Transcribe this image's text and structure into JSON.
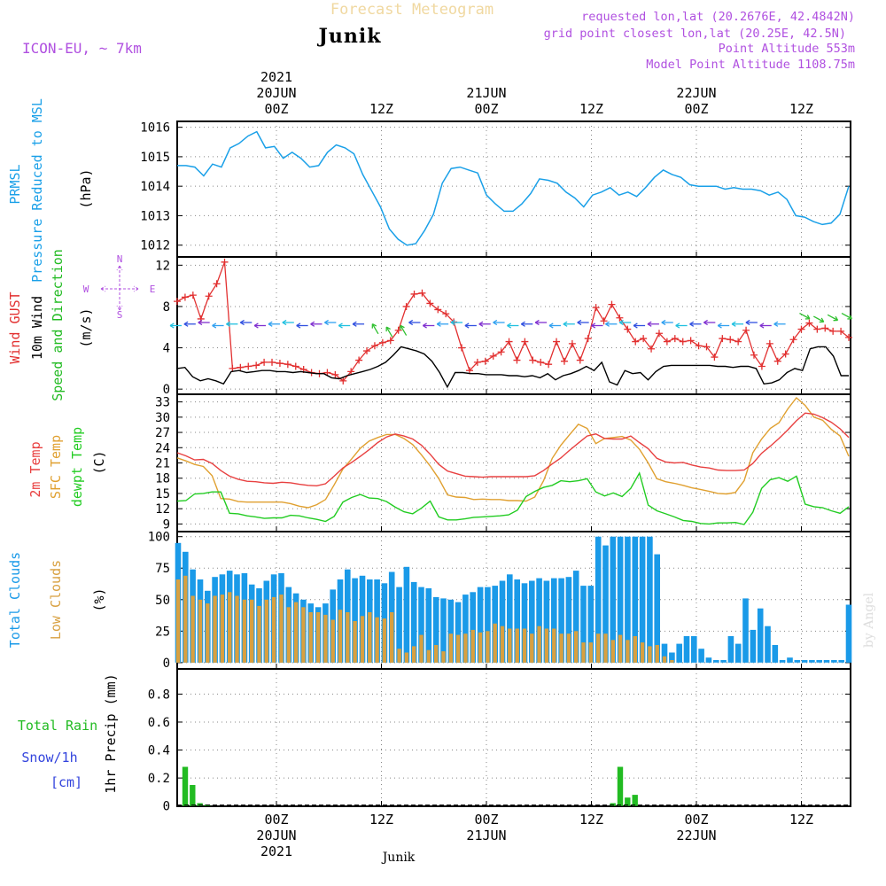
{
  "header": {
    "title": "Forecast Meteogram",
    "location": "Junik",
    "model": "ICON-EU, ~ 7km",
    "requested": "requested lon,lat (20.2676E, 42.4842N)",
    "gridpoint": "grid point closest lon,lat (20.25E, 42.5N)",
    "point_alt": "Point Altitude 553m",
    "model_alt": "Model Point Altitude 1108.75m",
    "watermark": "by Angel",
    "footer_location": "Junik"
  },
  "time_axis": {
    "ticks": [
      {
        "label": "00Z",
        "date": "20JUN",
        "year": "2021"
      },
      {
        "label": "12Z",
        "date": "",
        "year": ""
      },
      {
        "label": "00Z",
        "date": "21JUN",
        "year": ""
      },
      {
        "label": "12Z",
        "date": "",
        "year": ""
      },
      {
        "label": "00Z",
        "date": "22JUN",
        "year": ""
      },
      {
        "label": "12Z",
        "date": "",
        "year": ""
      }
    ]
  },
  "colors": {
    "pressure": "#1aa0e8",
    "gust": "#e23030",
    "wind": "#000000",
    "dir": "#22bb22",
    "t2m": "#e84040",
    "tsfc": "#e0a030",
    "dewpt": "#22cc22",
    "tcc": "#1a9ae8",
    "lcc": "#d8a040",
    "rain": "#22bb22",
    "snow": "#3344dd",
    "purple": "#b050e0",
    "title": "#f0d8a0"
  },
  "chart_data": [
    {
      "type": "line",
      "title": "PRMSL Pressure Reduced to MSL",
      "ylabels": [
        "PRMSL",
        "Pressure Reduced to MSL",
        "(hPa)"
      ],
      "ylim": [
        1011.6,
        1016.2
      ],
      "yticks": [
        1012,
        1013,
        1014,
        1015,
        1016
      ],
      "series": [
        {
          "name": "PRMSL",
          "values": [
            1014.7,
            1014.7,
            1014.65,
            1014.35,
            1014.75,
            1014.65,
            1015.3,
            1015.45,
            1015.7,
            1015.85,
            1015.3,
            1015.35,
            1014.95,
            1015.15,
            1014.95,
            1014.65,
            1014.7,
            1015.15,
            1015.4,
            1015.3,
            1015.1,
            1014.4,
            1013.85,
            1013.3,
            1012.55,
            1012.2,
            1012.0,
            1012.05,
            1012.5,
            1013.05,
            1014.1,
            1014.6,
            1014.65,
            1014.55,
            1014.45,
            1013.7,
            1013.4,
            1013.15,
            1013.15,
            1013.4,
            1013.75,
            1014.25,
            1014.2,
            1014.1,
            1013.8,
            1013.6,
            1013.3,
            1013.7,
            1013.8,
            1013.95,
            1013.7,
            1013.8,
            1013.65,
            1013.95,
            1014.3,
            1014.55,
            1014.4,
            1014.3,
            1014.05,
            1014.0,
            1014.0,
            1014.0,
            1013.9,
            1013.95,
            1013.9,
            1013.9,
            1013.85,
            1013.7,
            1013.8,
            1013.55,
            1013.0,
            1012.95,
            1012.8,
            1012.7,
            1012.75,
            1013.05,
            1014.0
          ]
        }
      ]
    },
    {
      "type": "line",
      "title": "Wind GUST / 10m Wind Speed and Direction",
      "ylabels": [
        "Wind GUST",
        "10m Wind",
        "Speed and Direction",
        "(m/s)"
      ],
      "ylim": [
        -0.5,
        12.8
      ],
      "yticks": [
        0,
        4,
        8,
        12
      ],
      "compass": {
        "n": "N",
        "s": "S",
        "w": "W",
        "e": "E"
      },
      "series": [
        {
          "name": "Wind GUST",
          "values": [
            8.5,
            8.9,
            9.1,
            6.8,
            9.0,
            10.2,
            12.3,
            2.0,
            2.1,
            2.2,
            2.3,
            2.6,
            2.6,
            2.5,
            2.4,
            2.2,
            1.9,
            1.6,
            1.5,
            1.6,
            1.4,
            0.8,
            1.7,
            2.8,
            3.7,
            4.2,
            4.5,
            4.7,
            5.7,
            8.0,
            9.2,
            9.3,
            8.3,
            7.7,
            7.3,
            6.5,
            4.0,
            1.8,
            2.6,
            2.7,
            3.2,
            3.6,
            4.6,
            2.8,
            4.6,
            2.8,
            2.6,
            2.4,
            4.6,
            2.7,
            4.4,
            2.8,
            4.9,
            7.9,
            6.6,
            8.2,
            6.9,
            5.8,
            4.6,
            4.9,
            3.9,
            5.4,
            4.6,
            4.9,
            4.6,
            4.7,
            4.2,
            4.1,
            3.1,
            4.9,
            4.8,
            4.6,
            5.7,
            3.3,
            2.2,
            4.4,
            2.7,
            3.4,
            4.8,
            5.8,
            6.4,
            5.8,
            5.9,
            5.6,
            5.6,
            5.0
          ]
        },
        {
          "name": "10m Wind",
          "values": [
            2.0,
            2.1,
            1.2,
            0.8,
            1.0,
            0.8,
            0.5,
            1.7,
            1.8,
            1.6,
            1.7,
            1.8,
            1.8,
            1.7,
            1.7,
            1.6,
            1.7,
            1.6,
            1.5,
            1.5,
            1.1,
            1.0,
            1.3,
            1.5,
            1.7,
            1.9,
            2.2,
            2.6,
            3.3,
            4.1,
            3.9,
            3.7,
            3.4,
            2.7,
            1.6,
            0.2,
            1.6,
            1.6,
            1.5,
            1.5,
            1.4,
            1.4,
            1.4,
            1.3,
            1.3,
            1.2,
            1.3,
            1.1,
            1.5,
            0.9,
            1.3,
            1.5,
            1.8,
            2.2,
            1.8,
            2.6,
            0.7,
            0.4,
            1.8,
            1.5,
            1.6,
            0.9,
            1.7,
            2.2,
            2.3,
            2.3,
            2.3,
            2.3,
            2.3,
            2.3,
            2.2,
            2.2,
            2.1,
            2.2,
            2.2,
            2.0,
            0.5,
            0.6,
            0.9,
            1.6,
            2.0,
            1.8,
            3.9,
            4.1,
            4.1,
            3.2,
            1.3,
            1.3
          ]
        }
      ]
    },
    {
      "type": "line",
      "title": "2m Temp / SFC Temp / dewpt Temp",
      "ylabels": [
        "2m Temp",
        "SFC Temp",
        "dewpt Temp",
        "(C)"
      ],
      "ylim": [
        7.5,
        34.5
      ],
      "yticks": [
        9,
        12,
        15,
        18,
        21,
        24,
        27,
        30,
        33
      ],
      "series": [
        {
          "name": "2m Temp",
          "values": [
            23.0,
            22.4,
            21.6,
            21.7,
            20.9,
            19.5,
            18.4,
            17.8,
            17.4,
            17.3,
            17.1,
            17.0,
            17.2,
            17.1,
            16.8,
            16.6,
            16.5,
            16.9,
            18.4,
            20.0,
            21.1,
            22.3,
            23.6,
            25.0,
            26.1,
            26.7,
            26.3,
            25.7,
            24.5,
            22.7,
            20.7,
            19.4,
            18.9,
            18.4,
            18.3,
            18.2,
            18.3,
            18.3,
            18.3,
            18.3,
            18.3,
            18.5,
            19.5,
            20.8,
            22.0,
            23.5,
            24.9,
            26.3,
            26.7,
            25.8,
            25.7,
            25.7,
            26.3,
            25.0,
            23.8,
            21.9,
            21.2,
            21.0,
            21.1,
            20.6,
            20.2,
            20.0,
            19.6,
            19.5,
            19.5,
            19.6,
            20.9,
            22.9,
            24.3,
            25.8,
            27.5,
            29.3,
            30.8,
            30.6,
            29.9,
            29.0,
            27.7,
            26.0
          ]
        },
        {
          "name": "SFC Temp",
          "values": [
            22.0,
            21.4,
            20.7,
            20.3,
            18.5,
            14.0,
            13.9,
            13.4,
            13.3,
            13.3,
            13.3,
            13.3,
            13.3,
            13.0,
            12.5,
            12.2,
            12.8,
            13.8,
            16.7,
            19.8,
            21.8,
            23.9,
            25.3,
            26.0,
            26.6,
            26.6,
            25.8,
            24.6,
            22.6,
            20.4,
            17.9,
            14.7,
            14.3,
            14.2,
            13.8,
            13.9,
            13.8,
            13.8,
            13.6,
            13.6,
            13.5,
            14.3,
            17.5,
            21.9,
            24.5,
            26.6,
            28.6,
            27.8,
            24.8,
            25.8,
            26.0,
            26.2,
            25.5,
            23.7,
            21.0,
            17.9,
            17.3,
            17.0,
            16.6,
            16.1,
            15.8,
            15.4,
            15.0,
            14.9,
            15.2,
            17.5,
            23.0,
            25.7,
            27.8,
            28.9,
            31.6,
            33.8,
            32.3,
            30.0,
            29.4,
            27.6,
            26.3,
            22.3
          ]
        },
        {
          "name": "dewpt Temp",
          "values": [
            13.5,
            13.6,
            14.9,
            15.0,
            15.3,
            15.3,
            11.1,
            11.0,
            10.6,
            10.4,
            10.1,
            10.2,
            10.2,
            10.7,
            10.6,
            10.2,
            9.9,
            9.5,
            10.5,
            13.3,
            14.2,
            14.8,
            14.1,
            14.0,
            13.4,
            12.3,
            11.4,
            11.0,
            12.1,
            13.5,
            10.4,
            9.8,
            9.8,
            10.0,
            10.3,
            10.4,
            10.5,
            10.6,
            10.8,
            11.7,
            14.4,
            15.4,
            16.2,
            16.6,
            17.5,
            17.3,
            17.5,
            17.9,
            15.3,
            14.5,
            15.1,
            14.4,
            16.0,
            19.0,
            12.7,
            11.6,
            11.0,
            10.4,
            9.7,
            9.5,
            9.1,
            9.0,
            9.2,
            9.2,
            9.3,
            8.9,
            11.3,
            16.0,
            17.7,
            18.1,
            17.4,
            18.4,
            12.9,
            12.4,
            12.2,
            11.6,
            11.1,
            12.4
          ]
        }
      ]
    },
    {
      "type": "bar",
      "title": "Total Clouds / Low Clouds",
      "ylabels": [
        "Total Clouds",
        "Low Clouds",
        "(%)"
      ],
      "ylim": [
        -5,
        104
      ],
      "yticks": [
        0,
        25,
        50,
        75,
        100
      ],
      "series": [
        {
          "name": "Total Clouds",
          "values": [
            95,
            88,
            74,
            66,
            57,
            68,
            70,
            73,
            70,
            71,
            62,
            59,
            65,
            70,
            71,
            60,
            55,
            50,
            47,
            44,
            47,
            58,
            66,
            74,
            67,
            69,
            66,
            66,
            63,
            72,
            60,
            76,
            64,
            60,
            59,
            52,
            51,
            50,
            48,
            54,
            56,
            60,
            60,
            61,
            65,
            70,
            66,
            63,
            65,
            67,
            65,
            67,
            67,
            68,
            73,
            61,
            61,
            100,
            93,
            100,
            100,
            100,
            100,
            100,
            100,
            86,
            15,
            8,
            15,
            21,
            21,
            11,
            4,
            2,
            2,
            21,
            15,
            51,
            26,
            43,
            29,
            14,
            2,
            4,
            2,
            2,
            2,
            2,
            2,
            2,
            2,
            46
          ]
        },
        {
          "name": "Low Clouds",
          "values": [
            66,
            69,
            53,
            50,
            47,
            53,
            54,
            56,
            53,
            50,
            50,
            45,
            50,
            52,
            54,
            44,
            48,
            44,
            40,
            40,
            38,
            34,
            42,
            40,
            33,
            37,
            40,
            36,
            35,
            40,
            11,
            8,
            13,
            22,
            10,
            14,
            9,
            23,
            22,
            23,
            26,
            24,
            25,
            31,
            29,
            27,
            27,
            27,
            23,
            29,
            27,
            27,
            23,
            23,
            25,
            16,
            16,
            23,
            23,
            18,
            22,
            18,
            21,
            16,
            13,
            14,
            5,
            2,
            0,
            0,
            0,
            0,
            0,
            0,
            0,
            0,
            0,
            0,
            0,
            0,
            0,
            0,
            0,
            0,
            0,
            0,
            0,
            0,
            0,
            0,
            0,
            0
          ]
        }
      ]
    },
    {
      "type": "bar",
      "title": "1hr Precip",
      "ylabels": [
        "Total Rain",
        "Snow/1h",
        "[cm]",
        "1hr Precip (mm)"
      ],
      "ylim": [
        -0.002,
        0.98
      ],
      "yticks": [
        0,
        0.2,
        0.4,
        0.6,
        0.8
      ],
      "series": [
        {
          "name": "Total Rain",
          "values": [
            0.28,
            0.15,
            0.02,
            0.01,
            0,
            0,
            0,
            0,
            0,
            0,
            0,
            0,
            0,
            0,
            0,
            0,
            0,
            0,
            0,
            0,
            0,
            0,
            0,
            0,
            0,
            0,
            0,
            0,
            0,
            0,
            0,
            0,
            0,
            0,
            0,
            0,
            0,
            0,
            0,
            0,
            0,
            0,
            0,
            0,
            0,
            0,
            0,
            0,
            0,
            0,
            0,
            0,
            0,
            0,
            0,
            0,
            0,
            0,
            0.02,
            0.28,
            0.06,
            0.08,
            0,
            0,
            0,
            0,
            0,
            0,
            0,
            0,
            0,
            0,
            0,
            0,
            0,
            0,
            0,
            0,
            0,
            0,
            0,
            0,
            0,
            0,
            0,
            0,
            0,
            0,
            0,
            0,
            0
          ]
        }
      ]
    }
  ]
}
